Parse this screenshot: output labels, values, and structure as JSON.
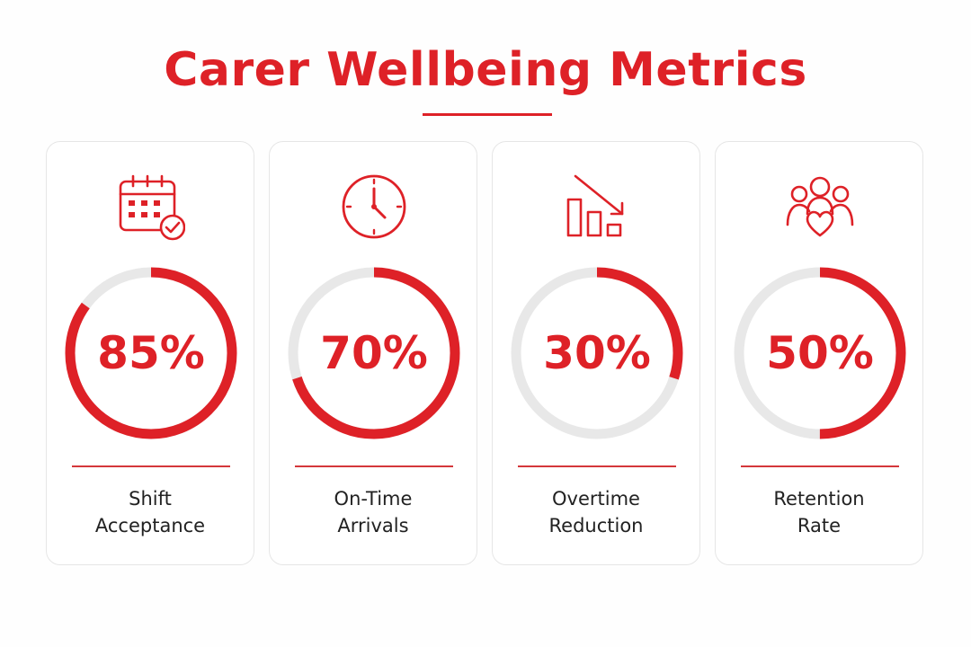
{
  "title": "Carer Wellbeing Metrics",
  "colors": {
    "accent": "#de2127",
    "track": "#e8e8e8",
    "text": "#222222",
    "card_border": "#e6e6e6"
  },
  "cards": [
    {
      "icon": "calendar-check-icon",
      "label_line1": "Shift",
      "label_line2": "Acceptance",
      "percent_text": "85%"
    },
    {
      "icon": "clock-icon",
      "label_line1": "On-Time",
      "label_line2": "Arrivals",
      "percent_text": "70%"
    },
    {
      "icon": "chart-decline-icon",
      "label_line1": "Overtime",
      "label_line2": "Reduction",
      "percent_text": "30%"
    },
    {
      "icon": "team-heart-icon",
      "label_line1": "Retention",
      "label_line2": "Rate",
      "percent_text": "50%"
    }
  ],
  "chart_data": {
    "type": "pie",
    "categories": [
      "Shift Acceptance",
      "On-Time Arrivals",
      "Overtime Reduction",
      "Retention Rate"
    ],
    "values": [
      85,
      70,
      30,
      50
    ],
    "unit": "%",
    "max": 100
  }
}
